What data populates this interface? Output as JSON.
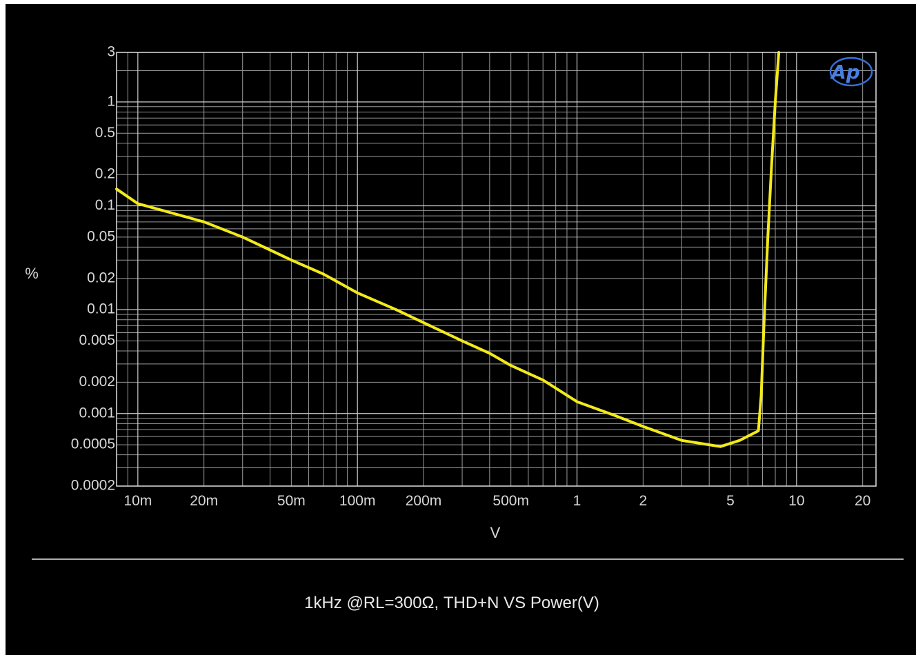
{
  "chart_data": {
    "type": "line",
    "xscale": "log",
    "yscale": "log",
    "xlim": [
      0.008,
      23
    ],
    "ylim": [
      0.0002,
      3
    ],
    "xlabel": "V",
    "ylabel": "%",
    "caption": "1kHz @RL=300Ω, THD+N VS Power(V)",
    "logo_text": "Ap",
    "grid": true,
    "x_ticks": [
      {
        "value": 0.01,
        "label": "10m"
      },
      {
        "value": 0.02,
        "label": "20m"
      },
      {
        "value": 0.05,
        "label": "50m"
      },
      {
        "value": 0.1,
        "label": "100m"
      },
      {
        "value": 0.2,
        "label": "200m"
      },
      {
        "value": 0.5,
        "label": "500m"
      },
      {
        "value": 1,
        "label": "1"
      },
      {
        "value": 2,
        "label": "2"
      },
      {
        "value": 5,
        "label": "5"
      },
      {
        "value": 10,
        "label": "10"
      },
      {
        "value": 20,
        "label": "20"
      }
    ],
    "y_ticks": [
      {
        "value": 3,
        "label": "3"
      },
      {
        "value": 1,
        "label": "1"
      },
      {
        "value": 0.5,
        "label": "0.5"
      },
      {
        "value": 0.2,
        "label": "0.2"
      },
      {
        "value": 0.1,
        "label": "0.1"
      },
      {
        "value": 0.05,
        "label": "0.05"
      },
      {
        "value": 0.02,
        "label": "0.02"
      },
      {
        "value": 0.01,
        "label": "0.01"
      },
      {
        "value": 0.005,
        "label": "0.005"
      },
      {
        "value": 0.002,
        "label": "0.002"
      },
      {
        "value": 0.001,
        "label": "0.001"
      },
      {
        "value": 0.0005,
        "label": "0.0005"
      },
      {
        "value": 0.0002,
        "label": "0.0002"
      }
    ],
    "series": [
      {
        "color": "#f2ea1a",
        "x": [
          0.008,
          0.01,
          0.02,
          0.03,
          0.05,
          0.07,
          0.1,
          0.15,
          0.2,
          0.3,
          0.4,
          0.5,
          0.7,
          1,
          1.5,
          2,
          3,
          4,
          4.5,
          5.5,
          6.7,
          6.9,
          7.1,
          7.4,
          7.7,
          8.0,
          8.3
        ],
        "y": [
          0.145,
          0.105,
          0.07,
          0.05,
          0.03,
          0.022,
          0.0145,
          0.01,
          0.0075,
          0.005,
          0.0038,
          0.0029,
          0.0021,
          0.0013,
          0.00095,
          0.00075,
          0.00055,
          0.0005,
          0.00048,
          0.00055,
          0.00068,
          0.0015,
          0.007,
          0.05,
          0.25,
          1.0,
          3.0
        ]
      }
    ]
  }
}
